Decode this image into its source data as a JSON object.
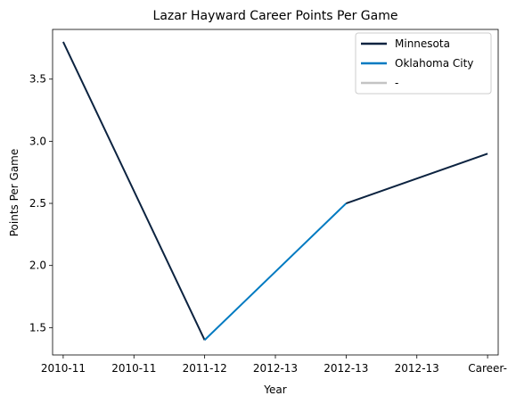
{
  "chart_data": {
    "type": "line",
    "title": "Lazar Hayward Career Points Per Game",
    "xlabel": "Year",
    "ylabel": "Points Per Game",
    "categories": [
      "2010-11",
      "2010-11",
      "2011-12",
      "2012-13",
      "2012-13",
      "2012-13",
      "Career-"
    ],
    "ylim": [
      1.28,
      3.9
    ],
    "yticks": [
      1.5,
      2.0,
      2.5,
      3.0,
      3.5
    ],
    "ytick_labels": [
      "1.5",
      "2.0",
      "2.5",
      "3.0",
      "3.5"
    ],
    "grid": false,
    "legend_position": "top-right",
    "series": [
      {
        "name": "Minnesota",
        "color": "#0C2340",
        "points": [
          [
            0,
            3.8
          ],
          [
            2,
            1.4
          ]
        ]
      },
      {
        "name": "Oklahoma City",
        "color": "#007AC1",
        "points": [
          [
            2,
            1.4
          ],
          [
            4,
            2.5
          ]
        ]
      },
      {
        "name": "-",
        "color": "#C4C4C4",
        "points": []
      },
      {
        "name": "Minnesota",
        "color": "#0C2340",
        "legend": false,
        "points": [
          [
            4,
            2.5
          ],
          [
            6,
            2.9
          ]
        ]
      }
    ]
  }
}
